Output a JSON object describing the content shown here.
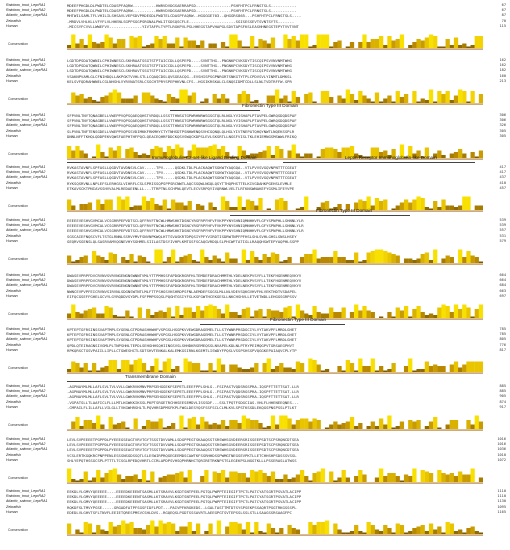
{
  "sequences": [
    {
      "name": "Rainbow_trout_LeprRA1"
    },
    {
      "name": "Rainbow_trout_LeprRA2"
    },
    {
      "name": "Atlantic_salmon_LeprRA1"
    },
    {
      "name": "Zebrafish"
    },
    {
      "name": "Human"
    }
  ],
  "conservation_label": "Conservation",
  "domains": [
    {
      "label": "Fibronectin Type III Domain"
    },
    {
      "label": "Immunoglobulin C2-set-like Ligand Binding Domain"
    },
    {
      "label": "Leptin Receptor Immunoglobulin-like Domain"
    },
    {
      "label": "Fibronectin Type III Domain"
    },
    {
      "label": "Fibronectin Type III Domain"
    },
    {
      "label": "Transmembrane Domain"
    }
  ],
  "blocks": [
    {
      "seqs": [
        "MDEEFPHGDLDLPWDTELCDASPFAQRW----------HWRVDVDGSAERRAPSD---------------PSHFHTPCLFRNSTSLS-----------",
        "MDEEFPHGDLDLPWDTELCDASPFAQRW----------HWRVDVDGSAERRAPSD---------------PSHFHTPCLFRNSTSLS-----------",
        "MHTWILSAMLTFLVHILILSHSAVLVEPSDVPRDEGDLPWDTELCDASPFAQRW--HGGGGE703--QHGGRS865---PSHFHTPCLFRNSTSLS----",
        "-MRDVLVHLKLLVFYFLVLHHENLSGPPSGGPSRGNALPWLITSDSQSCFLE--------------------SGISESSEVTSVNTSYTS-------",
        "-MICSYFCVVLLWWEFVV--------------YIVTAFPLTYPTLRGKPVLPSLHHEGSTAPVHAPGLSDVTAPSFKSLEASHHNEGSTEPYTVVTVNT"
      ],
      "nums": [
        "67",
        "67",
        "87",
        "70",
        "115"
      ]
    },
    {
      "seqs": [
        "LGDTDPSDATQWNILCPHIWNESCLSKHRAATSSGTSTPTAICCDLLQSPEPD----SVNTTHG--PNGNKPCVKSDYTISCQIPSVVNVNMTWHG",
        "LGDTDPSDATQWNILCPHIWNESCLSKHRAATSSGTSTPTAICCDLLQSPEPD----SVNTTHG--PNGNKPCVKSDYTISCQIPSVVNVNMTWHG",
        "LSDTDPSDATQWNILCPHIWNESCLSKHRAVTSSGTSTPTAICCDLLQSPEPD----SVNTTHG--PNGNKPCVKSDYTISCQIPSVVNVNMTWHG",
        "VSAKNPVAMLGLCFNIHDQLLAKPGKTVVHLSTLLCQAQCDSLQVSGEACQG--EVSHISPSGPNRGRTSNKGTYTPLCPDVSVLYINMTLDMKSL",
        "KELSVFQDRAHWNELCGLNHSHLVYRVNATSRLCSGCHTPRYSPEPHKVNLCFS--HGSIKRSKALCLSNQSIDMTCDLLSLNLTVDTRFFW-SPR"
      ],
      "nums": [
        "162",
        "162",
        "182",
        "160",
        "213"
      ]
    },
    {
      "seqs": [
        "SFPVNLTNYTQNAGBELLVWEPPVQPSQAEQQHSTVRDQLLSSSTTHNSGTGPWRHNRWSGSGTQLRLNGLYVISHAPLPTAVPELGWRQSDQDSPAF",
        "SFPVNLTNYTQNAGBELLVWEPPVQPSQAEQQHSTVRDQLLSSSTTHNSGTGPWRHNRWSGSGTQLRLNGLYVISHAPLPTAVPELGWRQSDQDSPAF",
        "SFPVNLTNYTQNAGBELLVWEPPVQPSQAEQQHSTVRDQLLSSSTTHNSGTGPWRHNRWSGSGTQLRLNGLYVISHAPLPTAVPELGWRQSDQDSPAF",
        "SLPVNLTNFTENSGDELLVWEPPVQPSSVDIMKKFRKMHYCTYTNHSDTPSNHWENQSVHCGQNQLQLHGLYIVTNEPATQHQYNWTLNQEKSSPLR",
        "DNNLNFFTKHQLQDDPEKVQWSFAEPHTHFPQCLQEACEQHRFDDCKQSVSWQCKDPSLEVLSKSRTLLNGSFVISLTKLEHIEMNGSMSWWLFRIKQ"
      ],
      "nums": [
        "306",
        "306",
        "326",
        "305",
        "305"
      ]
    },
    {
      "seqs": [
        "RVKASTAVNFLSPFASLLQGDVTAVDNSVLCAV-----TPV-----QSDKLTDLPLACKAQWTSGKWTYAQGQA--VTLPVVSVGQVNPNTTTCGEAT",
        "RVKASTAVNFLSPFASLLQGDVTAVDNSVLCAV-----TPV-----QSDKLTDLPLACKAQWTSGKWTYAQGQA--VTLPVVSVGQVNPNTTTCGEAT",
        "RVKASTAVNFLSPFASLLQGDVTAVDNSVLCAV-----TPV-----QSDKLTDLPLACKAQWTSGKWTYAQGQA--VTLPVVSVGQVNPNTTTCGEAT",
        "RYKSQSRVNLLNPLEFSLERHGSLVIHRFLCSLSPRISSQPSPPSRCNWTLAQCSSQWLNGQLQSYTTHQPHSTTELKIVGDAHKPGEHSLEVMLE",
        "ETKAVSCKTPNIAVSSHVVALMLREDAEENLLL---TTRPTNLSCHPNLQEVTLECVSRPQYIVQRNWLVELTLRTKNSWNAKEFYGSMLIFEYVPE"
      ],
      "nums": [
        "417",
        "417",
        "437",
        "410",
        "457"
      ]
    },
    {
      "seqs": [
        "EEEEEVESHVGVMCALVCSGRRPEPVDTSCLQFFRVFTNCWLHMWSHKTDSNCYRSFRPFHFVFVKPPYNYSHNIQMNHHVFLGFYSPNPHLLSHNNLYLR",
        "EEEEEVESHVGVMCALVCSGRRPEPVDTSCLQFFRVFTNCWLHMWSHKTDSNCYRSFRPFHFVFVKPPYNYSHNIQMNHHVFLGFYSPNPHLLSHNNLYLR",
        "EEEEEVESHVGVMCALVCSGRRPEPVDTSCLQFFRVFTNCWLHMWSHKTDSNCYRSFRPFHFVFVKPPYNYSHNIQMNHHVFLGFYSPNPHLLSHNNLYLR",
        "SGSCAIEFNQSCVFLTSTGLRNNLSSRVYMVFSNVNPKWQLHTTSVASKRTDPQSIYPFYVIRDTISDRWTNPFPFHSLSHLSVHLGHSLSNSLHSEY",
        "GEQRVSGENSLQLSASRVAMVQGNEVHYSGHMELSIILASTDSYIVHPLKMTGSFSCAQGVRDQLSLPHCWFTATIGLLRAQQHSWTEPYAQPHLSSPP"
      ],
      "nums": [
        "539",
        "539",
        "557",
        "531",
        "579"
      ]
    },
    {
      "seqs": [
        "DWASEVPRPFDVCRVNVSVRVNGENGNSWNNTVMLYTTPMHSSFAPDGKRGRFHLTEMDEFDRACHMMTHLYDELNEKPVSYFLLTEKFHGENMEQVKYV",
        "DWASEVPRPFDVCRVNVSVRVNGENGNSWNNTVMLYTTPMHSSFAPDGKRGRFHLTEMDEFDRACHMMTHLYDELNEKPVSYFLLTEKFHGENMEQVKYV",
        "DWASEVPRPFDVCRVNVSVRVNGENGNSWNNTVMLYTTPMHSSFAPDGKRGRFHLTEMDEFDRACHMMTHLYDELNEKPVSYFLLTEKFHGENMEQVKYV",
        "NWNCEVPVPFEICRVNVSIRVNLSDGNSWTNTLMLFTTPSHGSVKSHRDPSFNLAEMDEFSGGSLMLLNLVDEVSQKGVHVFHLVEKTHDTVSDAPEL",
        "EIFQCGSEFFGHELGCVYLGYRQDDVSYDPLFSFPMPSSQSLPQGHTGSIYFSLKSFGWTHCEKGESLLNKCHSHVLLETVETWDLLEHGGSGRPSSV"
      ],
      "nums": [
        "664",
        "664",
        "684",
        "663",
        "697"
      ]
    },
    {
      "seqs": [
        "KPTEPTGFRSINSSVAPTMPLSYGENLGTPDRASHHWHFVSPGSLHSGPKVVEWGDRAGEMELTLLSTYWNRPRSDGCIYLVYTAKVPFLMRDLGHET",
        "KPTEPTGFRSINSSVAPTMPLSYGENLGTPDRASHHWHFVSPGSLHSGPKVVEWGDRAGEMELTLLSTYWNRPRSDGCIYLVYTAKVPFLMRDLGHET",
        "KPTEPTGFRSINSSVAPTMPLSYGENLGTPDRASHHWHFVSPGSLHSGPKVVEWGDRAGEMELTLLSTYWNRPRSDGCIYLVYTAKVPFLMRDLGHET",
        "QPDLQTEIRAGNSIVGMLPLTNPSHHLTEPDLSEHGHHSQHIINGSVSLSHHDKRSEMEQSSLNVAPELKDLNLPTRYPEIMQGPVTGRSAEGPHVT",
        "RPKQRSCTGSVPAIILLIPLLCTGWESHCTLSDTSHVTENKALKALEMKGSIRNLKGEMTLISWDYFPQSLVSSPSHSSPVQGGKEPAIAQVCPLYTP"
      ],
      "nums": [
        "785",
        "785",
        "805",
        "776",
        "817"
      ]
    },
    {
      "seqs": [
        "-AGPNAYMLMLLAFLSVLTVLVVLLGWKRVKMNVPRPSEHGGEKFSEPETLEEEFPPLSHLG--FSIPASTVQDSRGSPRA-IQSPFTTETTSAT-LLR",
        "-AGPNAYMLMLLAFLSVLTVLVVLLGWKRVKMNVPRPSEHGGEKFSEPETLEEEFPPLSHLG--FSIPASTVQDSRGSPRA-IQSPFTTETTSAT-LLR",
        "-AGPNAYMLMLLAFLSVLTVLVVLLGWKRVKMNVPRPSEHGGEKFSEPETLEEEFPPLSHLG--FSIPASTVQDSRGSPRA-IQSPFTTETTSAT-LLR",
        "-VGPATSLLTLAAFICLFLLLMTLKGWKKIKSSLPKPTSRGETRCHHSEESEMDVLISSSDF---SSLTPQTFSDGCIAS-VHLFLHHENEEQNES---",
        "-CMPAILFLILLAFLLVILGLLTVKGWHRSHLTLPQVHRSDPMSFKPLFWGLDESYQSFSSFSCLCLMLKVLSPSTKSSDLEKQGSPNSPSSLPTLKT"
      ],
      "nums": [
        "885",
        "885",
        "905",
        "874",
        "917"
      ]
    },
    {
      "seqs": [
        "LEVLSVPEEEETPGPPDLPYEEEGSEAGTVRVTGYTSSSTDVVAMLLSDGPPEGTSKAAQSSTSRSWHSGVDEERSRISSEEPSDTSCPSRQNCDTSEA",
        "LEVLSVPEEEETPGPPDLPYEEEGSEAGTVRVTGYTSSSTDVVAMLLSDGPPEGTSKAAQSSTSRSWHSGVDEERSRISSEEPSDTSCPSRQNCDTSEA",
        "LEVLSVPEEEETPGPPDLPYEEEGSEAGTVRVTGYTSSSTDVVAMLLSDGPPEGTSKAAQSSTSRSWHSGVDEERSRISSEEPSDTSCPSRQNCDTSEA",
        "VCSLERTKGQKRCPNPPENLESSSNSGDSSQTLSLESWIRPRQGEGEEMDSCAWTKFSSRHHDSSPWMGTNEGSEVPKTLLETCHHSHPSDSSSVSSL",
        "SHLYEPQTHSSGCSPLPTTTLTCSGLRPEDQVHRTLCCRLAPDPSVHSQPHRNHCTQRIRETRKNPSTSLEGEKPSLNGGTKLLLPSSERASLATWSS"
      ],
      "nums": [
        "1016",
        "1016",
        "1036",
        "1010",
        "1072"
      ]
    },
    {
      "seqs": [
        "EEKDLYLGMVYQEEEEE----EEEEDKEEENTSASMLLKTSRAVVLKSDTSNTPEELPGTQLPWPPTEIEGIFTPCTLPATCYATSGRTPSVATLACIPP",
        "EEKDLYLGMVYQEEEEE----EEEEDKEEENTSASMLLKTSRAVVLKSDTSNTPEELPGTQLPWPPTEIEGIFTPCTLPATCYATSGRTPSVATLACIPP",
        "EEKDLYLGMVYQEEEEE----EEEEDKEEENTSASMLLKTSRAVVLKSDTSNTPEELPGTQLPWPPTEIEGIFTPCTLPATCYATSGRTPSVATLACIPP",
        "RQKDFSLTMVYPGSE-----GRGADFATPFSGSFIDFLPDT---PAIVPFKRGKEDS--LGALTASTTMTDTSYSPSEKPSSAQRTPGGTRKGSSSPL",
        "EDEDLVLGHVTSFLTNVFLEEIETQRESPMSVCSHLDVS--RGQEQSLPGDTSSSAVRTLAEEGPGTSVTEPSSLSSLSTLLSAAGSSRSAAGFPC"
      ],
      "nums": [
        "1110",
        "1110",
        "1130",
        "1095",
        "1165"
      ]
    }
  ]
}
